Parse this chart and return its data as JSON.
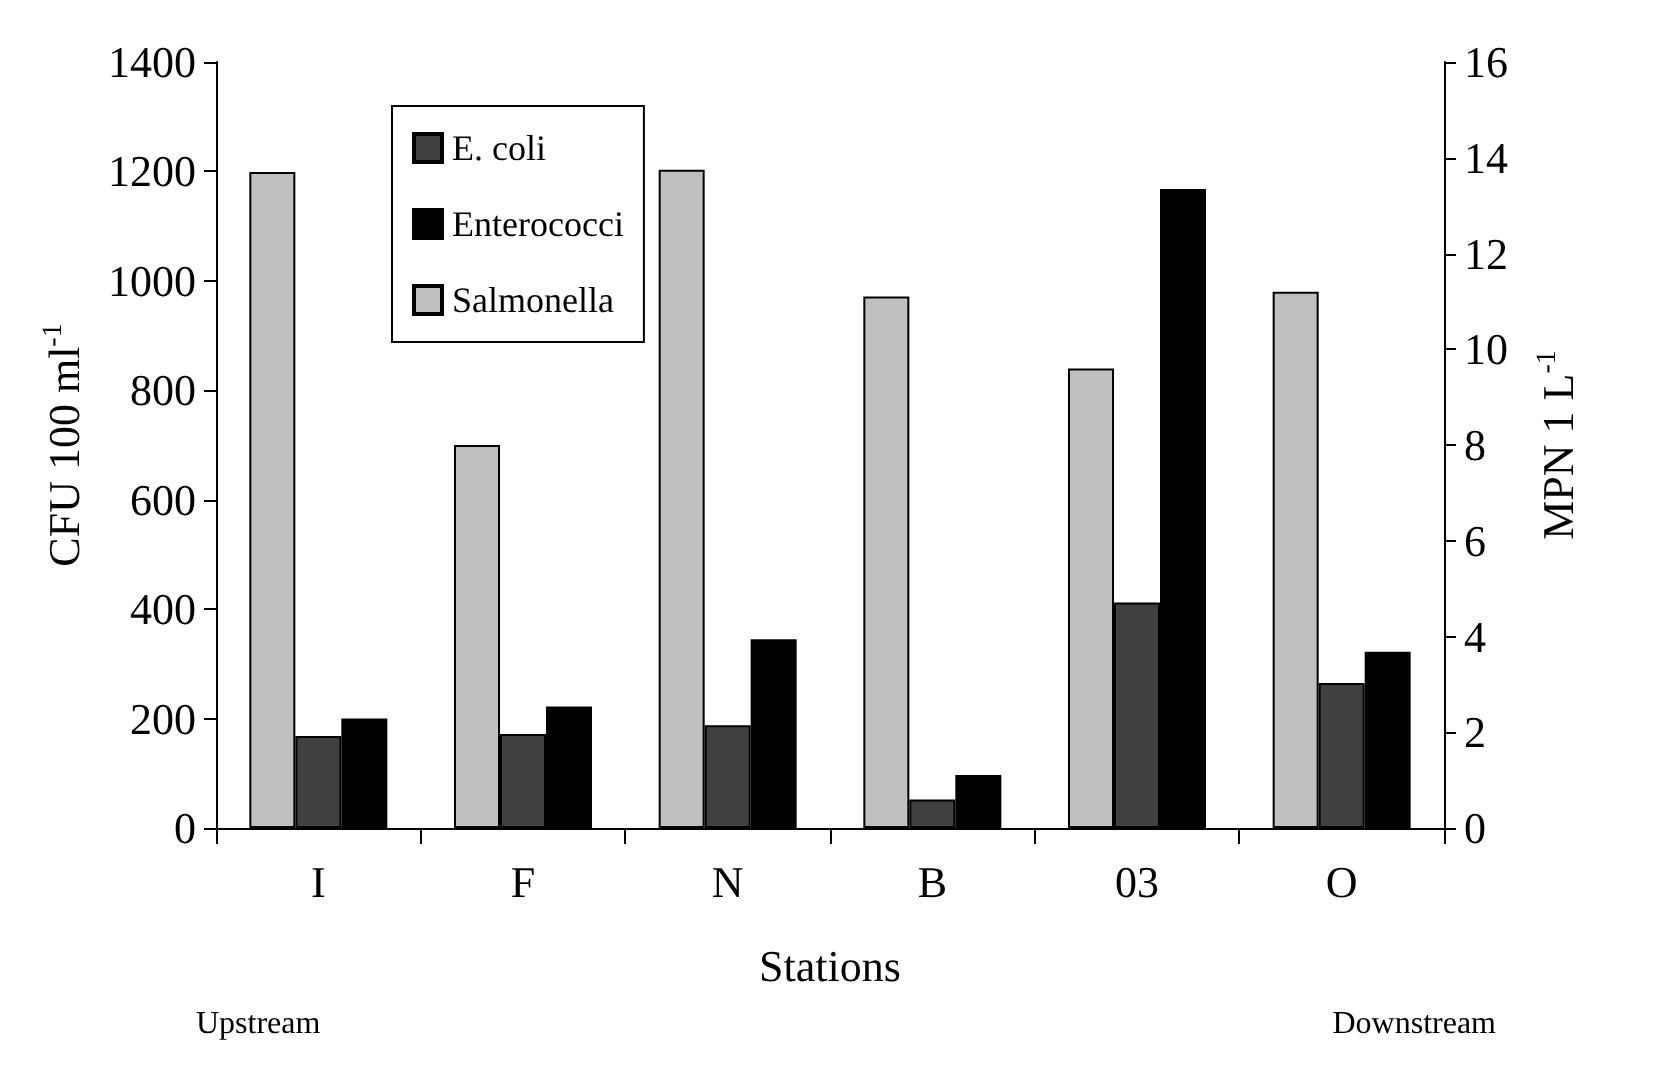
{
  "chart_data": {
    "type": "bar",
    "xlabel": "Stations",
    "ylabel": "CFU 100 ml$^{-1}$",
    "y2label": "MPN 1 L$^{-1}$",
    "categories": [
      "I",
      "F",
      "N",
      "B",
      "03",
      "O"
    ],
    "series": [
      {
        "name": "Salmonella",
        "color": "#c0c0c0",
        "axis": "y2",
        "values": [
          13.7,
          8.0,
          13.75,
          11.1,
          9.6,
          11.2
        ]
      },
      {
        "name": "E. coli",
        "color": "#404040",
        "values": [
          168,
          172,
          188,
          52,
          412,
          265
        ]
      },
      {
        "name": "Enterococci",
        "color": "#000000",
        "values": [
          200,
          222,
          345,
          97,
          1168,
          322
        ]
      }
    ],
    "ylim": [
      0,
      1400
    ],
    "yticks": [
      0,
      200,
      400,
      600,
      800,
      1000,
      1200,
      1400
    ],
    "y2lim": [
      0,
      16
    ],
    "y2ticks": [
      0,
      2,
      4,
      6,
      8,
      10,
      12,
      14,
      16
    ],
    "legend": "top left",
    "grid": false,
    "annotations": [
      "Upstream",
      "Downstream"
    ]
  }
}
